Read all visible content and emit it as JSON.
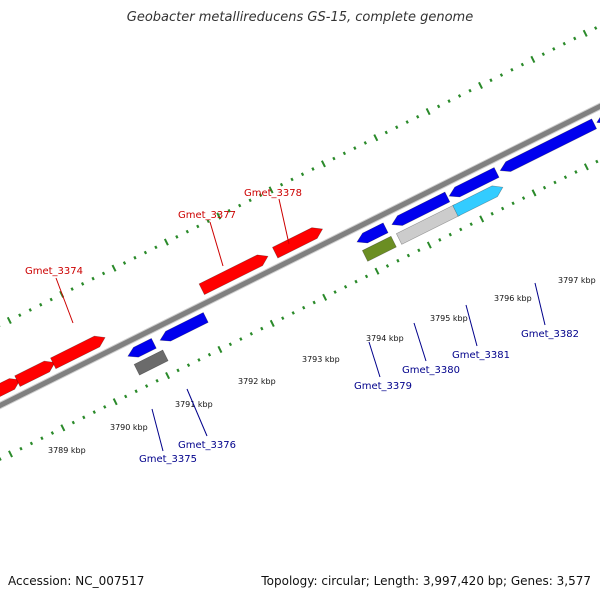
{
  "title": "Geobacter metallireducens GS-15, complete genome",
  "footer": {
    "accession": "Accession: NC_007517",
    "topology": "Topology: circular; Length: 3,997,420 bp; Genes: 3,577"
  },
  "colors": {
    "forward_strand": "#ff0000",
    "reverse_strand": "#0000ee",
    "backbone": "#808080",
    "ticks": "#2a8a2a",
    "forward_label": "#cc0000",
    "reverse_label": "#00008b"
  },
  "scale": {
    "ticks": [
      "3789 kbp",
      "3790 kbp",
      "3791 kbp",
      "3792 kbp",
      "3793 kbp",
      "3794 kbp",
      "3795 kbp",
      "3796 kbp",
      "3797 kbp"
    ]
  },
  "genes": {
    "forward": [
      "Gmet_3374",
      "Gmet_3377",
      "Gmet_3378"
    ],
    "reverse": [
      "Gmet_3375",
      "Gmet_3376",
      "Gmet_3379",
      "Gmet_3380",
      "Gmet_3381",
      "Gmet_3382"
    ]
  }
}
